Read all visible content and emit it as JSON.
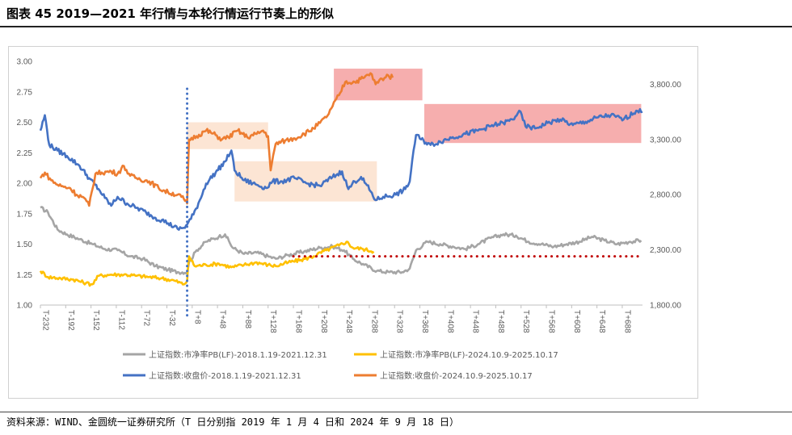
{
  "header": {
    "title": "图表 45  2019—2021 年行情与本轮行情运行节奏上的形似"
  },
  "footer": {
    "source": "资料来源：WIND、金圆统一证券研究所（T 日分别指 2019 年 1 月 4 日和 2024 年 9 月 18 日）"
  },
  "chart_data": {
    "type": "line",
    "left_axis": {
      "ylim": [
        1.0,
        3.0
      ],
      "ticks": [
        "1.00",
        "1.25",
        "1.50",
        "1.75",
        "2.00",
        "2.25",
        "2.50",
        "2.75",
        "3.00"
      ]
    },
    "right_axis": {
      "ylim": [
        1800,
        4000
      ],
      "ticks": [
        "1,800.00",
        "2,300.00",
        "2,800.00",
        "3,300.00",
        "3,800.00"
      ]
    },
    "x_axis": {
      "range": [
        -232,
        720
      ],
      "ticks": [
        "T-232",
        "T-192",
        "T-152",
        "T-112",
        "T-72",
        "T-32",
        "T+8",
        "T+48",
        "T+88",
        "T+128",
        "T+168",
        "T+208",
        "T+248",
        "T+288",
        "T+328",
        "T+368",
        "T+408",
        "T+448",
        "T+488",
        "T+528",
        "T+568",
        "T+608",
        "T+648",
        "T+688"
      ]
    },
    "series": [
      {
        "name": "上证指数:市净率PB(LF)-2018.1.19-2021.12.31",
        "axis": "left",
        "color": "#a5a5a5",
        "points": [
          [
            -232,
            1.8
          ],
          [
            -220,
            1.76
          ],
          [
            -205,
            1.62
          ],
          [
            -190,
            1.58
          ],
          [
            -170,
            1.54
          ],
          [
            -150,
            1.5
          ],
          [
            -130,
            1.46
          ],
          [
            -110,
            1.45
          ],
          [
            -90,
            1.4
          ],
          [
            -70,
            1.38
          ],
          [
            -50,
            1.32
          ],
          [
            -30,
            1.29
          ],
          [
            -15,
            1.27
          ],
          [
            0,
            1.27
          ],
          [
            3,
            1.35
          ],
          [
            15,
            1.45
          ],
          [
            30,
            1.52
          ],
          [
            50,
            1.56
          ],
          [
            60,
            1.58
          ],
          [
            72,
            1.47
          ],
          [
            90,
            1.42
          ],
          [
            110,
            1.43
          ],
          [
            128,
            1.4
          ],
          [
            140,
            1.38
          ],
          [
            160,
            1.41
          ],
          [
            185,
            1.44
          ],
          [
            210,
            1.47
          ],
          [
            230,
            1.48
          ],
          [
            248,
            1.45
          ],
          [
            262,
            1.38
          ],
          [
            280,
            1.33
          ],
          [
            300,
            1.28
          ],
          [
            320,
            1.27
          ],
          [
            340,
            1.27
          ],
          [
            352,
            1.3
          ],
          [
            362,
            1.45
          ],
          [
            380,
            1.52
          ],
          [
            400,
            1.5
          ],
          [
            420,
            1.48
          ],
          [
            440,
            1.46
          ],
          [
            460,
            1.5
          ],
          [
            480,
            1.55
          ],
          [
            500,
            1.58
          ],
          [
            520,
            1.57
          ],
          [
            540,
            1.52
          ],
          [
            560,
            1.5
          ],
          [
            580,
            1.48
          ],
          [
            600,
            1.5
          ],
          [
            620,
            1.52
          ],
          [
            640,
            1.56
          ],
          [
            660,
            1.53
          ],
          [
            680,
            1.5
          ],
          [
            700,
            1.52
          ],
          [
            718,
            1.53
          ]
        ]
      },
      {
        "name": "上证指数:市净率PB(LF)-2024.10.9-2025.10.17",
        "axis": "left",
        "color": "#ffc000",
        "points": [
          [
            -232,
            1.28
          ],
          [
            -220,
            1.23
          ],
          [
            -200,
            1.22
          ],
          [
            -180,
            1.21
          ],
          [
            -160,
            1.18
          ],
          [
            -150,
            1.17
          ],
          [
            -140,
            1.24
          ],
          [
            -120,
            1.25
          ],
          [
            -100,
            1.25
          ],
          [
            -80,
            1.24
          ],
          [
            -60,
            1.23
          ],
          [
            -40,
            1.22
          ],
          [
            -20,
            1.2
          ],
          [
            -5,
            1.17
          ],
          [
            0,
            1.2
          ],
          [
            3,
            1.4
          ],
          [
            12,
            1.32
          ],
          [
            30,
            1.33
          ],
          [
            50,
            1.34
          ],
          [
            70,
            1.31
          ],
          [
            90,
            1.33
          ],
          [
            110,
            1.35
          ],
          [
            128,
            1.33
          ],
          [
            140,
            1.32
          ],
          [
            160,
            1.35
          ],
          [
            180,
            1.37
          ],
          [
            200,
            1.4
          ],
          [
            220,
            1.45
          ],
          [
            240,
            1.49
          ],
          [
            252,
            1.52
          ],
          [
            262,
            1.47
          ],
          [
            278,
            1.46
          ],
          [
            295,
            1.44
          ]
        ]
      },
      {
        "name": "上证指数:收盘价-2018.1.19-2021.12.31",
        "axis": "right",
        "color": "#4472c4",
        "points": [
          [
            -232,
            3380
          ],
          [
            -225,
            3520
          ],
          [
            -218,
            3250
          ],
          [
            -205,
            3200
          ],
          [
            -190,
            3150
          ],
          [
            -170,
            3060
          ],
          [
            -155,
            2950
          ],
          [
            -140,
            2850
          ],
          [
            -130,
            2770
          ],
          [
            -120,
            2700
          ],
          [
            -110,
            2780
          ],
          [
            -95,
            2720
          ],
          [
            -80,
            2680
          ],
          [
            -65,
            2640
          ],
          [
            -50,
            2590
          ],
          [
            -40,
            2570
          ],
          [
            -30,
            2540
          ],
          [
            -15,
            2490
          ],
          [
            -5,
            2500
          ],
          [
            0,
            2530
          ],
          [
            10,
            2620
          ],
          [
            20,
            2750
          ],
          [
            30,
            2900
          ],
          [
            45,
            3000
          ],
          [
            60,
            3100
          ],
          [
            70,
            3200
          ],
          [
            75,
            3020
          ],
          [
            90,
            2930
          ],
          [
            110,
            2890
          ],
          [
            125,
            2860
          ],
          [
            135,
            2920
          ],
          [
            150,
            2920
          ],
          [
            170,
            2950
          ],
          [
            190,
            2900
          ],
          [
            210,
            2880
          ],
          [
            230,
            2960
          ],
          [
            245,
            3010
          ],
          [
            255,
            2850
          ],
          [
            265,
            2920
          ],
          [
            275,
            2960
          ],
          [
            290,
            2830
          ],
          [
            298,
            2750
          ],
          [
            310,
            2780
          ],
          [
            330,
            2800
          ],
          [
            345,
            2850
          ],
          [
            352,
            2920
          ],
          [
            358,
            3200
          ],
          [
            362,
            3340
          ],
          [
            370,
            3300
          ],
          [
            385,
            3250
          ],
          [
            400,
            3280
          ],
          [
            420,
            3320
          ],
          [
            440,
            3350
          ],
          [
            460,
            3380
          ],
          [
            480,
            3420
          ],
          [
            500,
            3450
          ],
          [
            515,
            3480
          ],
          [
            525,
            3560
          ],
          [
            535,
            3420
          ],
          [
            550,
            3400
          ],
          [
            570,
            3450
          ],
          [
            590,
            3480
          ],
          [
            610,
            3430
          ],
          [
            630,
            3460
          ],
          [
            650,
            3500
          ],
          [
            670,
            3520
          ],
          [
            690,
            3480
          ],
          [
            710,
            3560
          ],
          [
            720,
            3550
          ]
        ]
      },
      {
        "name": "上证指数:收盘价-2024.10.9-2025.10.17",
        "axis": "right",
        "color": "#ed7d31",
        "points": [
          [
            -232,
            2950
          ],
          [
            -225,
            3000
          ],
          [
            -215,
            2930
          ],
          [
            -205,
            2890
          ],
          [
            -195,
            2870
          ],
          [
            -185,
            2860
          ],
          [
            -175,
            2800
          ],
          [
            -165,
            2780
          ],
          [
            -155,
            2700
          ],
          [
            -145,
            2990
          ],
          [
            -135,
            3000
          ],
          [
            -120,
            3010
          ],
          [
            -110,
            2990
          ],
          [
            -100,
            3060
          ],
          [
            -90,
            2970
          ],
          [
            -80,
            2950
          ],
          [
            -60,
            2920
          ],
          [
            -45,
            2860
          ],
          [
            -30,
            2820
          ],
          [
            -15,
            2800
          ],
          [
            -5,
            2760
          ],
          [
            0,
            2720
          ],
          [
            3,
            3300
          ],
          [
            15,
            3330
          ],
          [
            30,
            3380
          ],
          [
            45,
            3340
          ],
          [
            55,
            3300
          ],
          [
            65,
            3320
          ],
          [
            80,
            3380
          ],
          [
            95,
            3320
          ],
          [
            110,
            3350
          ],
          [
            120,
            3380
          ],
          [
            128,
            3330
          ],
          [
            132,
            3020
          ],
          [
            140,
            3260
          ],
          [
            155,
            3290
          ],
          [
            170,
            3310
          ],
          [
            185,
            3350
          ],
          [
            200,
            3400
          ],
          [
            210,
            3450
          ],
          [
            220,
            3500
          ],
          [
            230,
            3600
          ],
          [
            240,
            3700
          ],
          [
            250,
            3820
          ],
          [
            265,
            3820
          ],
          [
            280,
            3860
          ],
          [
            290,
            3900
          ],
          [
            298,
            3800
          ],
          [
            308,
            3850
          ],
          [
            318,
            3880
          ],
          [
            325,
            3860
          ]
        ]
      }
    ],
    "highlights": [
      {
        "color": "#fbe0cc",
        "x": [
          0,
          128
        ],
        "y_left": [
          2.28,
          2.5
        ]
      },
      {
        "color": "#fbe0cc",
        "x": [
          75,
          300
        ],
        "y_left": [
          1.85,
          2.18
        ]
      },
      {
        "color": "#f4a0a0",
        "x": [
          232,
          372
        ],
        "y_left": [
          2.68,
          2.94
        ]
      },
      {
        "color": "#f4a0a0",
        "x": [
          375,
          718
        ],
        "y_left": [
          2.33,
          2.65
        ]
      }
    ],
    "vertical_marker": {
      "x": 0,
      "color": "#4472c4",
      "style": "dotted"
    },
    "horizontal_marker": {
      "y_left": 1.4,
      "x": [
        168,
        720
      ],
      "color": "#c00000",
      "style": "dotted"
    }
  }
}
